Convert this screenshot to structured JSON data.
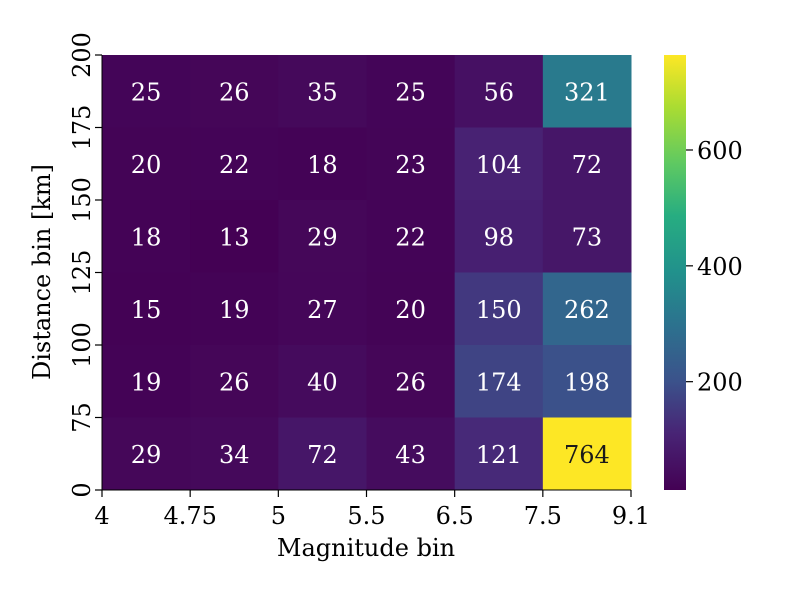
{
  "chart_data": {
    "type": "heatmap",
    "title": "",
    "xlabel": "Magnitude bin",
    "ylabel": "Distance bin [km]",
    "x_tick_labels": [
      "4",
      "4.75",
      "5",
      "5.5",
      "6.5",
      "7.5",
      "9.1"
    ],
    "y_tick_labels": [
      "0",
      "75",
      "100",
      "125",
      "150",
      "175",
      "200"
    ],
    "rows_top_to_bottom": [
      [
        25,
        26,
        35,
        25,
        56,
        321
      ],
      [
        20,
        22,
        18,
        23,
        104,
        72
      ],
      [
        18,
        13,
        29,
        22,
        98,
        73
      ],
      [
        15,
        19,
        27,
        20,
        150,
        262
      ],
      [
        19,
        26,
        40,
        26,
        174,
        198
      ],
      [
        29,
        34,
        72,
        43,
        121,
        764
      ]
    ],
    "colormap": "viridis",
    "colorbar": {
      "vmin": 13,
      "vmax": 764,
      "ticks": [
        200,
        400,
        600
      ],
      "tick_labels": [
        "200",
        "400",
        "600"
      ]
    },
    "annotation_colors": {
      "light_text": "#ffffff",
      "dark_text": "#1a1a1a"
    }
  }
}
